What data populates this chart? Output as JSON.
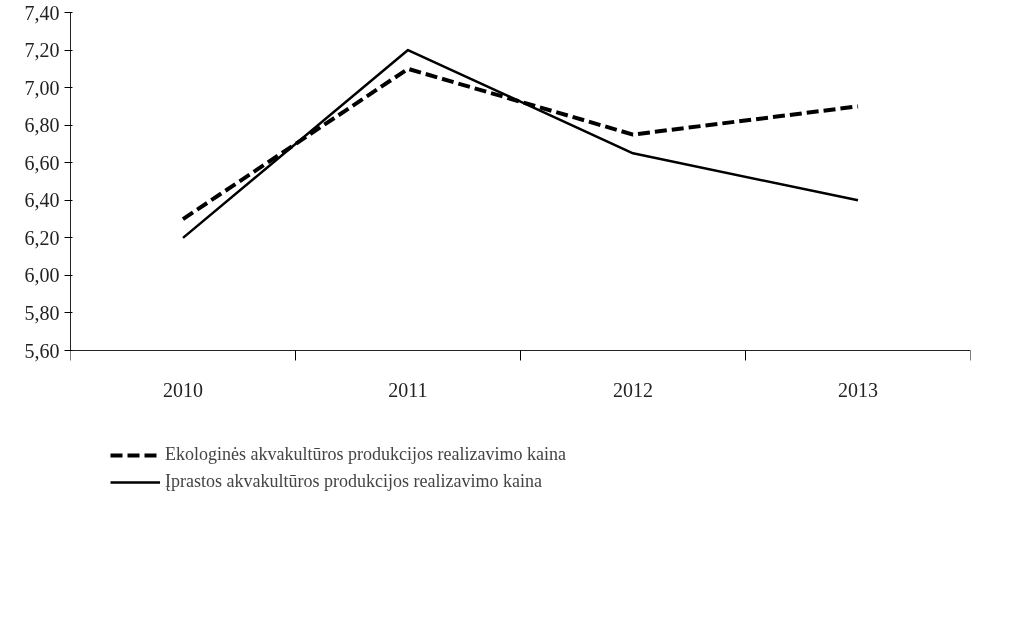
{
  "chart_data": {
    "type": "line",
    "categories": [
      "2010",
      "2011",
      "2012",
      "2013"
    ],
    "series": [
      {
        "name": "Ekologinės akvakultūros produkcijos realizavimo kaina",
        "color": "#000000",
        "line_style": "dashed",
        "values": [
          6.3,
          7.1,
          6.75,
          6.9
        ]
      },
      {
        "name": "Įprastos akvakultūros produkcijos realizavimo kaina",
        "color": "#000000",
        "line_style": "solid",
        "values": [
          6.2,
          7.2,
          6.65,
          6.4
        ]
      }
    ],
    "ylim": [
      5.6,
      7.4
    ],
    "yticks": [
      {
        "value": 5.6,
        "label": "5,60"
      },
      {
        "value": 5.8,
        "label": "5,80"
      },
      {
        "value": 6.0,
        "label": "6,00"
      },
      {
        "value": 6.2,
        "label": "6,20"
      },
      {
        "value": 6.4,
        "label": "6,40"
      },
      {
        "value": 6.6,
        "label": "6,60"
      },
      {
        "value": 6.8,
        "label": "6,80"
      },
      {
        "value": 7.0,
        "label": "7,00"
      },
      {
        "value": 7.2,
        "label": "7,20"
      },
      {
        "value": 7.4,
        "label": "7,40"
      }
    ],
    "grid": false,
    "legend": "bottom"
  }
}
